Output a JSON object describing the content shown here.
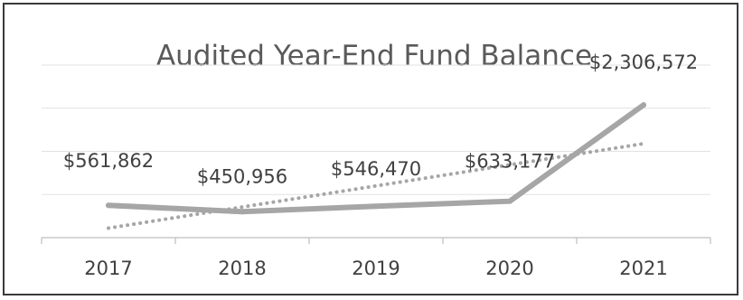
{
  "chart_data": {
    "type": "line",
    "title": "Audited Year-End Fund Balance",
    "categories": [
      "2017",
      "2018",
      "2019",
      "2020",
      "2021"
    ],
    "series": [
      {
        "values": [
          561862,
          450956,
          546470,
          633177,
          2306572
        ],
        "labels": [
          "$561,862",
          "$450,956",
          "$546,470",
          "$633,177",
          "$2,306,572"
        ]
      }
    ],
    "trendline": {
      "type": "linear",
      "style": "dotted"
    },
    "ylim": [
      0,
      3000000
    ],
    "grid": true,
    "legend": "none",
    "colors": {
      "line": "#a6a6a6",
      "trendline": "#a6a6a6",
      "gridline": "#e2e2e2",
      "axis": "#bfbfbf",
      "text": "#404040",
      "title": "#5a5a5a",
      "frame": "#3a3a3a"
    }
  }
}
